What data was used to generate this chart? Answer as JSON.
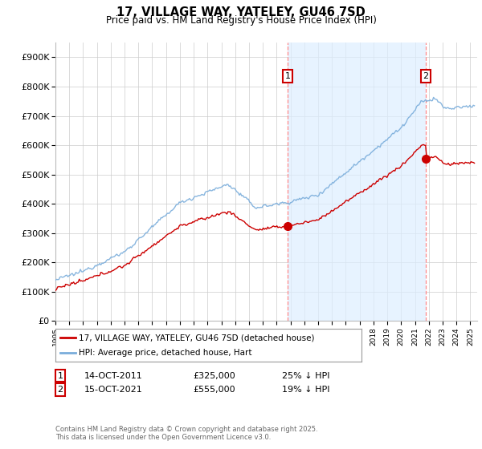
{
  "title": "17, VILLAGE WAY, YATELEY, GU46 7SD",
  "subtitle": "Price paid vs. HM Land Registry's House Price Index (HPI)",
  "legend_label_red": "17, VILLAGE WAY, YATELEY, GU46 7SD (detached house)",
  "legend_label_blue": "HPI: Average price, detached house, Hart",
  "annotation1_date": "14-OCT-2011",
  "annotation1_price": "£325,000",
  "annotation1_pct": "25% ↓ HPI",
  "annotation2_date": "15-OCT-2021",
  "annotation2_price": "£555,000",
  "annotation2_pct": "19% ↓ HPI",
  "footer": "Contains HM Land Registry data © Crown copyright and database right 2025.\nThis data is licensed under the Open Government Licence v3.0.",
  "xlim_start": 1995.0,
  "xlim_end": 2025.5,
  "ylim_bottom": 0,
  "ylim_top": 950000,
  "purchase1_year": 2011.79,
  "purchase1_price": 325000,
  "purchase2_year": 2021.79,
  "purchase2_price": 555000,
  "red_color": "#cc0000",
  "blue_color": "#7aaddb",
  "shade_color": "#ddeeff",
  "vline_color": "#ff8888"
}
